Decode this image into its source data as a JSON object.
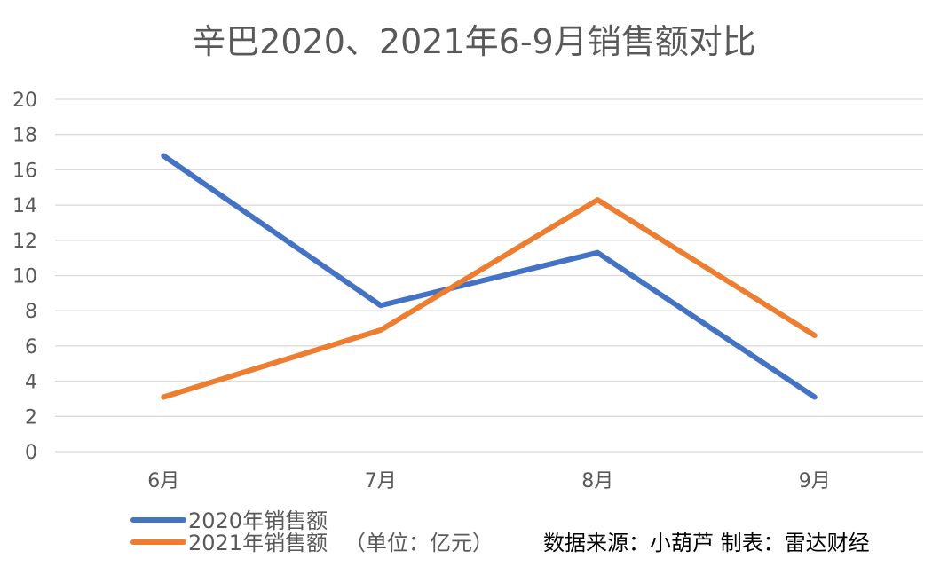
{
  "chart_data": {
    "type": "line",
    "title": "辛巴2020、2021年6-9月销售额对比",
    "categories": [
      "6月",
      "7月",
      "8月",
      "9月"
    ],
    "ylim": [
      0,
      20
    ],
    "yticks": [
      0,
      2,
      4,
      6,
      8,
      10,
      12,
      14,
      16,
      18,
      20
    ],
    "grid": true,
    "legend_position": "bottom-left",
    "series": [
      {
        "name": "2020年销售额",
        "color": "#4472C4",
        "values": [
          16.8,
          8.3,
          11.3,
          3.1
        ]
      },
      {
        "name": "2021年销售额",
        "color": "#ED7D31",
        "values": [
          3.1,
          6.9,
          14.3,
          6.6
        ]
      }
    ],
    "unit_note": "（单位：亿元）",
    "source_note": "数据来源：小葫芦  制表：雷达财经"
  }
}
